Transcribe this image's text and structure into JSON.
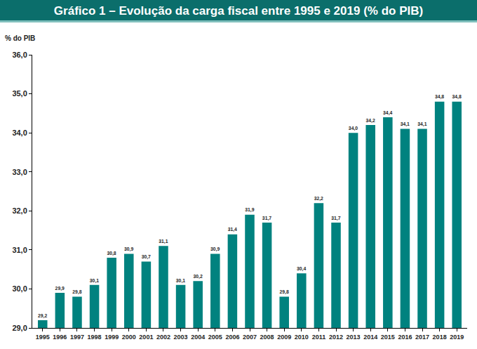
{
  "chart_data": {
    "type": "bar",
    "title": "Gráfico 1 – Evolução da carga fiscal entre 1995 e 2019 (% do PIB)",
    "y_label": "% do PIB",
    "categories": [
      "1995",
      "1996",
      "1997",
      "1998",
      "1999",
      "2000",
      "2001",
      "2002",
      "2003",
      "2004",
      "2005",
      "2006",
      "2007",
      "2008",
      "2009",
      "2010",
      "2011",
      "2012",
      "2013",
      "2014",
      "2015",
      "2016",
      "2017",
      "2018",
      "2019"
    ],
    "values": [
      29.2,
      29.9,
      29.8,
      30.1,
      30.8,
      30.9,
      30.7,
      31.1,
      30.1,
      30.2,
      30.9,
      31.4,
      31.9,
      31.7,
      29.8,
      30.4,
      32.2,
      31.7,
      34.0,
      34.2,
      34.4,
      34.1,
      34.1,
      34.8,
      34.8
    ],
    "value_labels": [
      "29,2",
      "29,9",
      "29,8",
      "30,1",
      "30,8",
      "30,9",
      "30,7",
      "31,1",
      "30,1",
      "30,2",
      "30,9",
      "31,4",
      "31,9",
      "31,7",
      "29,8",
      "30,4",
      "32,2",
      "31,7",
      "34,0",
      "34,2",
      "34,4",
      "34,1",
      "34,1",
      "34,8",
      "34,8"
    ],
    "color": "#00827f",
    "ylim": [
      29,
      36
    ],
    "yticks": [
      {
        "value": 29,
        "label": "29,0"
      },
      {
        "value": 30,
        "label": "30,0"
      },
      {
        "value": 31,
        "label": "31,0"
      },
      {
        "value": 32,
        "label": "32,0"
      },
      {
        "value": 33,
        "label": "33,0"
      },
      {
        "value": 34,
        "label": "34,0"
      },
      {
        "value": 35,
        "label": "35,0"
      },
      {
        "value": 36,
        "label": "36,0"
      }
    ],
    "grid": false,
    "data_labels": true
  }
}
